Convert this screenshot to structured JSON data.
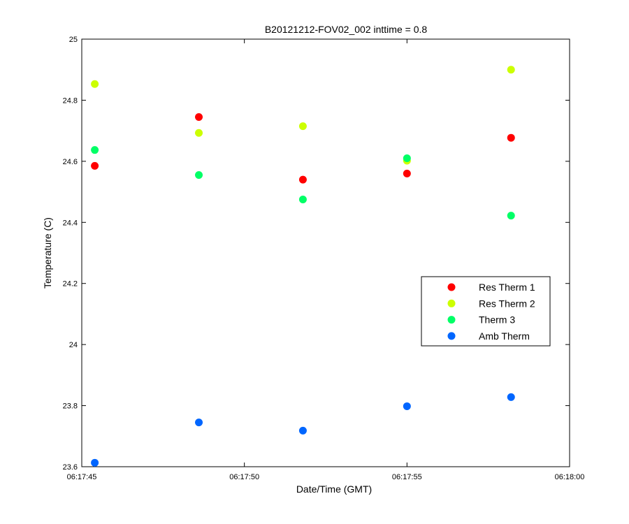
{
  "chart_data": {
    "type": "scatter",
    "title": "B20121212-FOV02_002 inttime = 0.8",
    "xlabel": "Date/Time (GMT)",
    "ylabel": "Temperature (C)",
    "x_tick_labels": [
      "06:17:45",
      "06:17:50",
      "06:17:55",
      "06:18:00"
    ],
    "x_ticks_seconds": [
      0,
      5,
      10,
      15
    ],
    "y_tick_labels": [
      "23.6",
      "23.8",
      "24",
      "24.2",
      "24.4",
      "24.6",
      "24.8",
      "25"
    ],
    "y_ticks": [
      23.6,
      23.8,
      24.0,
      24.2,
      24.4,
      24.6,
      24.8,
      25.0
    ],
    "xlim": [
      "06:17:45",
      "06:18:00"
    ],
    "ylim": [
      23.6,
      25.0
    ],
    "grid": false,
    "legend_position": "right-middle",
    "x": [
      "06:17:45.4",
      "06:17:48.6",
      "06:17:51.8",
      "06:17:55.0",
      "06:17:58.2"
    ],
    "series": [
      {
        "name": "Res Therm 1",
        "color": "#ff0000",
        "values": [
          24.585,
          24.745,
          24.54,
          24.56,
          24.677
        ]
      },
      {
        "name": "Res Therm 2",
        "color": "#ccff00",
        "values": [
          24.853,
          24.693,
          24.715,
          24.602,
          24.9
        ]
      },
      {
        "name": "Therm 3",
        "color": "#00ff66",
        "values": [
          24.637,
          24.555,
          24.475,
          24.61,
          24.422
        ]
      },
      {
        "name": "Amb Therm",
        "color": "#0066ff",
        "values": [
          23.613,
          23.745,
          23.718,
          23.798,
          23.828
        ]
      }
    ]
  }
}
